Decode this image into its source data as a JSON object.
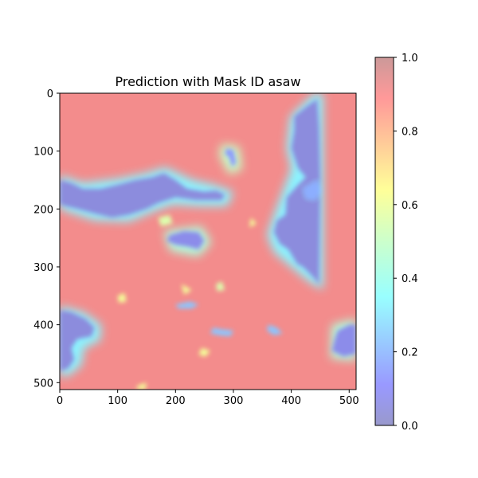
{
  "chart_data": {
    "type": "heatmap",
    "title": "Prediction with Mask ID asaw",
    "xlabel": "",
    "ylabel": "",
    "image_size": [
      512,
      512
    ],
    "xlim": [
      0,
      512
    ],
    "ylim": [
      512,
      0
    ],
    "xticks": [
      0,
      100,
      200,
      300,
      400,
      500
    ],
    "yticks": [
      0,
      100,
      200,
      300,
      400,
      500
    ],
    "colorbar": {
      "range": [
        0.0,
        1.0
      ],
      "ticks": [
        "0.0",
        "0.2",
        "0.4",
        "0.6",
        "0.8",
        "1.0"
      ],
      "colormap": "jet",
      "alpha": 0.3
    },
    "background_level": 0.9,
    "low_regions": [
      {
        "name": "top-right mass",
        "value": 0.05,
        "points": [
          [
            405,
            40
          ],
          [
            430,
            20
          ],
          [
            445,
            10
          ],
          [
            448,
            60
          ],
          [
            450,
            150
          ],
          [
            448,
            330
          ],
          [
            440,
            320
          ],
          [
            420,
            300
          ],
          [
            410,
            295
          ],
          [
            395,
            270
          ],
          [
            380,
            260
          ],
          [
            370,
            240
          ],
          [
            375,
            220
          ],
          [
            390,
            210
          ],
          [
            392,
            180
          ],
          [
            410,
            160
          ],
          [
            425,
            145
          ],
          [
            412,
            130
          ],
          [
            400,
            95
          ],
          [
            405,
            65
          ]
        ]
      },
      {
        "name": "left band",
        "value": 0.05,
        "points": [
          [
            0,
            150
          ],
          [
            20,
            155
          ],
          [
            40,
            165
          ],
          [
            70,
            165
          ],
          [
            100,
            158
          ],
          [
            130,
            150
          ],
          [
            160,
            145
          ],
          [
            180,
            138
          ],
          [
            200,
            150
          ],
          [
            220,
            165
          ],
          [
            250,
            170
          ],
          [
            270,
            168
          ],
          [
            285,
            175
          ],
          [
            280,
            185
          ],
          [
            260,
            185
          ],
          [
            235,
            185
          ],
          [
            215,
            182
          ],
          [
            200,
            180
          ],
          [
            185,
            185
          ],
          [
            170,
            190
          ],
          [
            150,
            200
          ],
          [
            120,
            210
          ],
          [
            90,
            215
          ],
          [
            60,
            208
          ],
          [
            30,
            200
          ],
          [
            10,
            195
          ],
          [
            0,
            192
          ]
        ]
      },
      {
        "name": "bottom-left blob",
        "value": 0.05,
        "points": [
          [
            0,
            375
          ],
          [
            20,
            378
          ],
          [
            45,
            390
          ],
          [
            60,
            405
          ],
          [
            55,
            420
          ],
          [
            30,
            425
          ],
          [
            20,
            440
          ],
          [
            25,
            460
          ],
          [
            15,
            475
          ],
          [
            0,
            480
          ]
        ]
      },
      {
        "name": "middle blob",
        "value": 0.08,
        "points": [
          [
            190,
            245
          ],
          [
            215,
            238
          ],
          [
            240,
            240
          ],
          [
            250,
            255
          ],
          [
            240,
            270
          ],
          [
            220,
            265
          ],
          [
            200,
            262
          ],
          [
            185,
            255
          ]
        ]
      },
      {
        "name": "top-center hook",
        "value": 0.15,
        "points": [
          [
            288,
            95
          ],
          [
            300,
            98
          ],
          [
            305,
            120
          ],
          [
            298,
            128
          ],
          [
            292,
            110
          ],
          [
            285,
            105
          ]
        ]
      },
      {
        "name": "right-bottom blob",
        "value": 0.08,
        "points": [
          [
            480,
            410
          ],
          [
            500,
            400
          ],
          [
            512,
            400
          ],
          [
            512,
            450
          ],
          [
            490,
            455
          ],
          [
            470,
            445
          ],
          [
            475,
            425
          ]
        ]
      },
      {
        "name": "right small patch",
        "value": 0.2,
        "points": [
          [
            420,
            165
          ],
          [
            445,
            150
          ],
          [
            452,
            170
          ],
          [
            440,
            185
          ],
          [
            425,
            182
          ]
        ]
      },
      {
        "name": "center small patch",
        "value": 0.25,
        "points": [
          [
            200,
            365
          ],
          [
            225,
            360
          ],
          [
            240,
            365
          ],
          [
            228,
            372
          ],
          [
            205,
            372
          ]
        ]
      },
      {
        "name": "lower small patch",
        "value": 0.25,
        "points": [
          [
            265,
            405
          ],
          [
            280,
            408
          ],
          [
            300,
            410
          ],
          [
            295,
            420
          ],
          [
            275,
            418
          ],
          [
            260,
            415
          ]
        ]
      },
      {
        "name": "right lower patch",
        "value": 0.25,
        "points": [
          [
            360,
            400
          ],
          [
            375,
            405
          ],
          [
            385,
            415
          ],
          [
            370,
            418
          ],
          [
            358,
            410
          ]
        ]
      }
    ],
    "mid_regions": [
      {
        "name": "top-right halo",
        "value": 0.35,
        "points": [
          [
            398,
            40
          ],
          [
            440,
            0
          ],
          [
            455,
            0
          ],
          [
            455,
            340
          ],
          [
            430,
            325
          ],
          [
            400,
            300
          ],
          [
            370,
            275
          ],
          [
            358,
            245
          ],
          [
            370,
            210
          ],
          [
            385,
            170
          ],
          [
            400,
            130
          ],
          [
            392,
            95
          ]
        ]
      },
      {
        "name": "left band halo",
        "value": 0.35,
        "points": [
          [
            0,
            142
          ],
          [
            40,
            155
          ],
          [
            100,
            148
          ],
          [
            150,
            138
          ],
          [
            182,
            128
          ],
          [
            230,
            150
          ],
          [
            265,
            158
          ],
          [
            300,
            170
          ],
          [
            290,
            195
          ],
          [
            240,
            195
          ],
          [
            195,
            192
          ],
          [
            160,
            205
          ],
          [
            120,
            222
          ],
          [
            60,
            220
          ],
          [
            0,
            200
          ]
        ]
      },
      {
        "name": "bottom-left halo",
        "value": 0.35,
        "points": [
          [
            0,
            368
          ],
          [
            40,
            378
          ],
          [
            72,
            400
          ],
          [
            70,
            428
          ],
          [
            42,
            440
          ],
          [
            38,
            470
          ],
          [
            15,
            488
          ],
          [
            0,
            490
          ]
        ]
      },
      {
        "name": "middle halo",
        "value": 0.45,
        "points": [
          [
            180,
            238
          ],
          [
            245,
            230
          ],
          [
            262,
            258
          ],
          [
            240,
            282
          ],
          [
            190,
            272
          ]
        ]
      },
      {
        "name": "right-bottom halo",
        "value": 0.45,
        "points": [
          [
            470,
            400
          ],
          [
            512,
            390
          ],
          [
            512,
            462
          ],
          [
            468,
            458
          ]
        ]
      },
      {
        "name": "top-center halo",
        "value": 0.5,
        "points": [
          [
            280,
            88
          ],
          [
            310,
            92
          ],
          [
            315,
            132
          ],
          [
            292,
            140
          ],
          [
            275,
            105
          ]
        ]
      }
    ],
    "bright_specks": [
      {
        "value": 0.6,
        "points": [
          [
            210,
            330
          ],
          [
            228,
            340
          ],
          [
            215,
            348
          ]
        ]
      },
      {
        "value": 0.6,
        "points": [
          [
            245,
            440
          ],
          [
            260,
            445
          ],
          [
            252,
            455
          ],
          [
            240,
            452
          ]
        ]
      },
      {
        "value": 0.6,
        "points": [
          [
            330,
            215
          ],
          [
            340,
            225
          ],
          [
            328,
            232
          ]
        ]
      },
      {
        "value": 0.6,
        "points": [
          [
            135,
            505
          ],
          [
            150,
            500
          ],
          [
            148,
            512
          ],
          [
            132,
            512
          ]
        ]
      },
      {
        "value": 0.6,
        "points": [
          [
            100,
            350
          ],
          [
            112,
            345
          ],
          [
            115,
            360
          ],
          [
            102,
            362
          ]
        ]
      },
      {
        "value": 0.55,
        "points": [
          [
            170,
            215
          ],
          [
            190,
            210
          ],
          [
            195,
            225
          ],
          [
            175,
            230
          ]
        ]
      },
      {
        "value": 0.55,
        "points": [
          [
            270,
            330
          ],
          [
            280,
            325
          ],
          [
            285,
            340
          ],
          [
            272,
            342
          ]
        ]
      }
    ]
  }
}
